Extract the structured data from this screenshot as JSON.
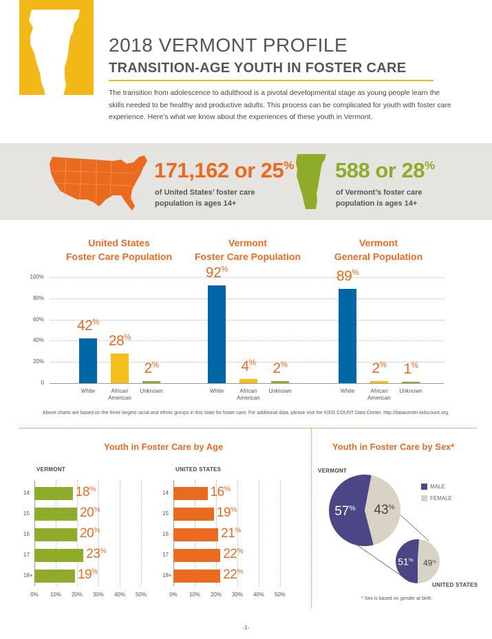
{
  "header": {
    "title": "2018 VERMONT PROFILE",
    "subtitle": "TRANSITION-AGE YOUTH IN FOSTER CARE",
    "intro": "The transition from adolescence to adulthood is a pivotal developmental stage as young people learn the skills needed to be healthy and productive adults. This process can be complicated for youth with foster care experience. Here’s what we know about the experiences of these youth in Vermont."
  },
  "stats": {
    "us": {
      "number": "171,162 or 25",
      "pct_sign": "%",
      "line1": "of United States’ foster care",
      "line2": "population is ages 14+"
    },
    "vt": {
      "number": "588 or 28",
      "pct_sign": "%",
      "line1": "of Vermont’s foster care",
      "line2": "population is ages 14+"
    }
  },
  "colors": {
    "blue": "#0066a6",
    "yellow": "#f5be1a",
    "green": "#8fab2a",
    "orange": "#ea6a1f",
    "purple": "#4b4787",
    "beige": "#d8d3c4"
  },
  "chart_data": [
    {
      "type": "bar",
      "groups": [
        {
          "title_line1": "United States",
          "title_line2": "Foster Care Population",
          "values": [
            42,
            28,
            2
          ],
          "labels": [
            "42",
            "28",
            "2"
          ]
        },
        {
          "title_line1": "Vermont",
          "title_line2": "Foster Care Population",
          "values": [
            92,
            4,
            2
          ],
          "labels": [
            "92",
            "4",
            "2"
          ]
        },
        {
          "title_line1": "Vermont",
          "title_line2": "General Population",
          "values": [
            89,
            2,
            1
          ],
          "labels": [
            "89",
            "2",
            "1"
          ]
        }
      ],
      "categories": [
        {
          "line1": "White",
          "line2": ""
        },
        {
          "line1": "African",
          "line2": "American"
        },
        {
          "line1": "Unknown",
          "line2": ""
        }
      ],
      "yticks": [
        "100%",
        "80%",
        "60%",
        "40%",
        "20%",
        "0"
      ],
      "ylim": [
        0,
        100
      ],
      "note": "Above charts are based on the three largest racial and ethnic groups in this state for foster care. For additional data, please visit the KIDS COUNT Data Center, http://datacenter.kidscount.org."
    },
    {
      "type": "bar",
      "title": "Youth in Foster Care by Age",
      "orientation": "horizontal",
      "categories": [
        "14",
        "15",
        "16",
        "17",
        "18+"
      ],
      "xticks": [
        "0%",
        "10%",
        "20%",
        "30%",
        "40%",
        "50%"
      ],
      "xlim": [
        0,
        50
      ],
      "series": [
        {
          "name": "VERMONT",
          "values": [
            18,
            20,
            20,
            23,
            19
          ],
          "labels": [
            "18",
            "20",
            "20",
            "23",
            "19"
          ]
        },
        {
          "name": "UNITED STATES",
          "values": [
            16,
            19,
            21,
            22,
            22
          ],
          "labels": [
            "16",
            "19",
            "21",
            "22",
            "22"
          ]
        }
      ]
    },
    {
      "type": "pie",
      "title": "Youth in Foster Care by Sex*",
      "legend": [
        "MALE",
        "FEMALE"
      ],
      "series": [
        {
          "name": "VERMONT",
          "values": [
            57,
            43
          ],
          "labels": [
            "57",
            "43"
          ]
        },
        {
          "name": "UNITED STATES",
          "values": [
            51,
            49
          ],
          "labels": [
            "51",
            "49"
          ]
        }
      ],
      "footnote": "* Sex is based on gender at birth."
    }
  ],
  "page_number": "-1-"
}
